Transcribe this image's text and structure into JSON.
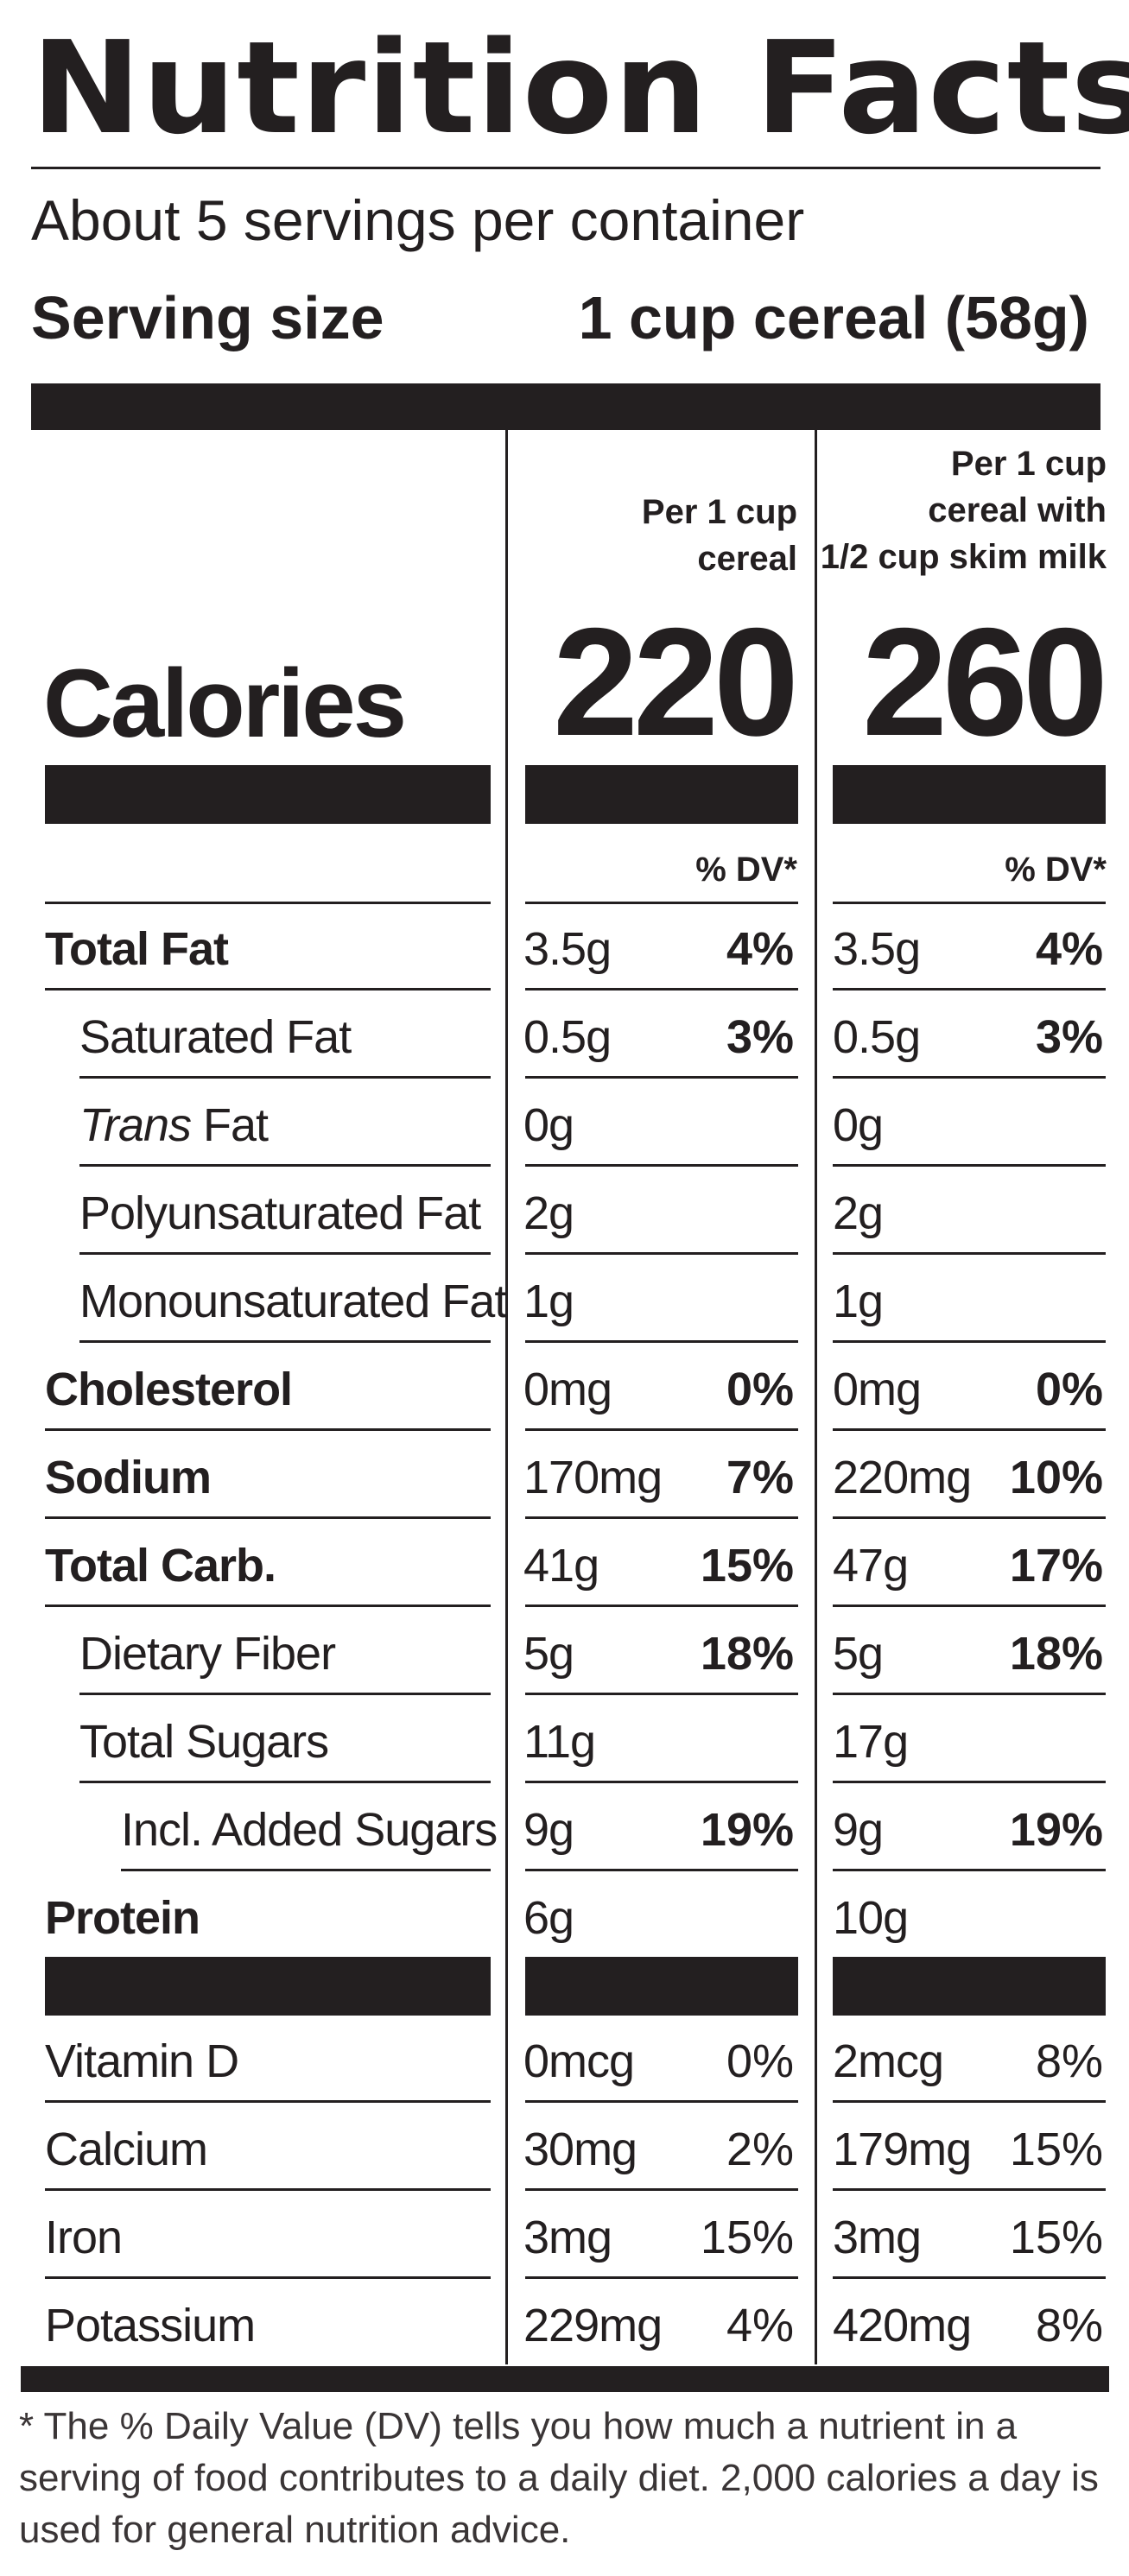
{
  "title": "Nutrition Facts",
  "servings_per_container": "About 5 servings per container",
  "serving_size": {
    "label": "Serving size",
    "value": "1 cup cereal (58g)"
  },
  "columns": [
    {
      "header": "Per 1 cup\ncereal",
      "calories": "220"
    },
    {
      "header": "Per 1 cup\ncereal with\n1/2 cup skim milk",
      "calories": "260"
    }
  ],
  "calories_label": "Calories",
  "dv_header": "% DV*",
  "nutrients": [
    {
      "name": "Total Fat",
      "bold": true,
      "indent": 0,
      "c1": {
        "amount": "3.5g",
        "dv": "4%"
      },
      "c2": {
        "amount": "3.5g",
        "dv": "4%"
      }
    },
    {
      "name": "Saturated Fat",
      "bold": false,
      "indent": 1,
      "c1": {
        "amount": "0.5g",
        "dv": "3%"
      },
      "c2": {
        "amount": "0.5g",
        "dv": "3%"
      }
    },
    {
      "name": "Trans Fat",
      "bold": false,
      "indent": 1,
      "italic_prefix": "Trans",
      "c1": {
        "amount": "0g",
        "dv": ""
      },
      "c2": {
        "amount": "0g",
        "dv": ""
      }
    },
    {
      "name": "Polyunsaturated Fat",
      "bold": false,
      "indent": 1,
      "c1": {
        "amount": "2g",
        "dv": ""
      },
      "c2": {
        "amount": "2g",
        "dv": ""
      }
    },
    {
      "name": "Monounsaturated Fat",
      "bold": false,
      "indent": 1,
      "c1": {
        "amount": "1g",
        "dv": ""
      },
      "c2": {
        "amount": "1g",
        "dv": ""
      }
    },
    {
      "name": "Cholesterol",
      "bold": true,
      "indent": 0,
      "c1": {
        "amount": "0mg",
        "dv": "0%"
      },
      "c2": {
        "amount": "0mg",
        "dv": "0%"
      }
    },
    {
      "name": "Sodium",
      "bold": true,
      "indent": 0,
      "c1": {
        "amount": "170mg",
        "dv": "7%"
      },
      "c2": {
        "amount": "220mg",
        "dv": "10%"
      }
    },
    {
      "name": "Total Carb.",
      "bold": true,
      "indent": 0,
      "c1": {
        "amount": "41g",
        "dv": "15%"
      },
      "c2": {
        "amount": "47g",
        "dv": "17%"
      }
    },
    {
      "name": "Dietary Fiber",
      "bold": false,
      "indent": 1,
      "c1": {
        "amount": "5g",
        "dv": "18%"
      },
      "c2": {
        "amount": "5g",
        "dv": "18%"
      }
    },
    {
      "name": "Total Sugars",
      "bold": false,
      "indent": 1,
      "c1": {
        "amount": "11g",
        "dv": ""
      },
      "c2": {
        "amount": "17g",
        "dv": ""
      }
    },
    {
      "name": "Incl. Added Sugars",
      "bold": false,
      "indent": 2,
      "c1": {
        "amount": "9g",
        "dv": "19%"
      },
      "c2": {
        "amount": "9g",
        "dv": "19%"
      }
    },
    {
      "name": "Protein",
      "bold": true,
      "indent": 0,
      "c1": {
        "amount": "6g",
        "dv": ""
      },
      "c2": {
        "amount": "10g",
        "dv": ""
      }
    }
  ],
  "vitamins": [
    {
      "name": "Vitamin D",
      "c1": {
        "amount": "0mcg",
        "dv": "0%"
      },
      "c2": {
        "amount": "2mcg",
        "dv": "8%"
      }
    },
    {
      "name": "Calcium",
      "c1": {
        "amount": "30mg",
        "dv": "2%"
      },
      "c2": {
        "amount": "179mg",
        "dv": "15%"
      }
    },
    {
      "name": "Iron",
      "c1": {
        "amount": "3mg",
        "dv": "15%"
      },
      "c2": {
        "amount": "3mg",
        "dv": "15%"
      }
    },
    {
      "name": "Potassium",
      "c1": {
        "amount": "229mg",
        "dv": "4%"
      },
      "c2": {
        "amount": "420mg",
        "dv": "8%"
      }
    }
  ],
  "footnote": "* The % Daily Value (DV) tells you how much a nutrient in a serving of food contributes to a daily diet. 2,000 calories a day is used for general nutrition advice."
}
